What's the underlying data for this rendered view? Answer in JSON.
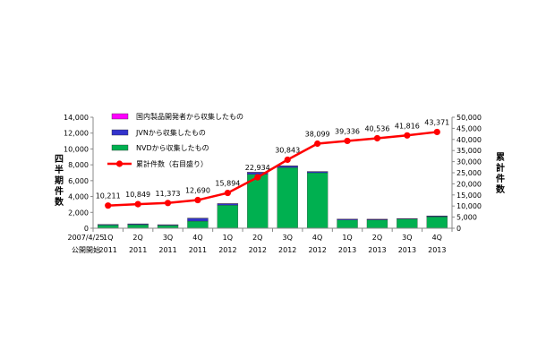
{
  "chart_data": {
    "type": "bar",
    "stacked": true,
    "categories": [
      [
        "1Q",
        "2011"
      ],
      [
        "2Q",
        "2011"
      ],
      [
        "3Q",
        "2011"
      ],
      [
        "4Q",
        "2011"
      ],
      [
        "1Q",
        "2012"
      ],
      [
        "2Q",
        "2012"
      ],
      [
        "3Q",
        "2012"
      ],
      [
        "4Q",
        "2012"
      ],
      [
        "1Q",
        "2013"
      ],
      [
        "2Q",
        "2013"
      ],
      [
        "3Q",
        "2013"
      ],
      [
        "4Q",
        "2013"
      ]
    ],
    "start_note": [
      "2007/4/25",
      "公開開始"
    ],
    "y_left": {
      "label": "四半期件数",
      "range": [
        0,
        14000
      ],
      "ticks": [
        "0",
        "2,000",
        "4,000",
        "6,000",
        "8,000",
        "10,000",
        "12,000",
        "14,000"
      ]
    },
    "y_right": {
      "label": "累計件数",
      "range": [
        0,
        50000
      ],
      "ticks": [
        "0",
        "5,000",
        "10,000",
        "15,000",
        "20,000",
        "25,000",
        "30,000",
        "35,000",
        "40,000",
        "45,000",
        "50,000"
      ]
    },
    "series": [
      {
        "name": "国内製品開発者から収集したもの",
        "color": "#ff00ff",
        "axis": "left",
        "values": [
          10,
          10,
          10,
          20,
          15,
          20,
          20,
          15,
          10,
          15,
          10,
          15
        ]
      },
      {
        "name": "JVNから収集したもの",
        "color": "#3333cc",
        "axis": "left",
        "values": [
          80,
          100,
          90,
          350,
          200,
          250,
          200,
          150,
          100,
          80,
          70,
          80
        ]
      },
      {
        "name": "NVDから収集したもの",
        "color": "#00b050",
        "axis": "left",
        "values": [
          400,
          450,
          350,
          900,
          2900,
          6800,
          7650,
          7000,
          1050,
          1050,
          1150,
          1450
        ]
      },
      {
        "name": "累計件数（右目盛り）",
        "color": "#ff0000",
        "axis": "right",
        "type": "line",
        "values": [
          10211,
          10849,
          11373,
          12690,
          15894,
          22934,
          30843,
          38099,
          39336,
          40536,
          41816,
          43371
        ],
        "labels": [
          "10,211",
          "10,849",
          "11,373",
          "12,690",
          "15,894",
          "22,934",
          "30,843",
          "38,099",
          "39,336",
          "40,536",
          "41,816",
          "43,371"
        ]
      }
    ],
    "legend_position": "top-left, inside plot",
    "grid": false
  }
}
